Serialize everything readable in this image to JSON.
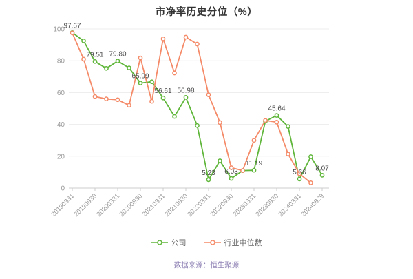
{
  "page": {
    "title": "市净率历史分位（%）",
    "source": "数据来源：恒生聚源"
  },
  "legend": {
    "items": [
      {
        "label": "公司",
        "color": "#5fb63a"
      },
      {
        "label": "行业中位数",
        "color": "#f48a68"
      }
    ]
  },
  "axis": {
    "y_tick_labels": [
      "0",
      "20",
      "40",
      "60",
      "80",
      "100"
    ],
    "x_tick_labels": [
      "20190331",
      "20190930",
      "20200331",
      "20200930",
      "20210331",
      "20210930",
      "20220331",
      "20220930",
      "20230331",
      "20230930",
      "20240331",
      "20240829"
    ]
  },
  "chart_data": {
    "type": "line",
    "title": "市净率历史分位（%）",
    "xlabel": "",
    "ylabel": "",
    "ylim": [
      0,
      100
    ],
    "yticks": [
      0,
      20,
      40,
      60,
      80,
      100
    ],
    "grid": true,
    "legend_position": "bottom",
    "x_tick_every": 2,
    "categories": [
      "20190331",
      "20190630",
      "20190930",
      "20191231",
      "20200331",
      "20200630",
      "20200930",
      "20201231",
      "20210331",
      "20210630",
      "20210930",
      "20211231",
      "20220331",
      "20220630",
      "20220930",
      "20221231",
      "20230331",
      "20230630",
      "20230930",
      "20231231",
      "20240331",
      "20240630",
      "20240829"
    ],
    "series": [
      {
        "name": "公司",
        "color": "#5fb63a",
        "values": [
          97.67,
          92.5,
          79.51,
          75.2,
          79.8,
          75.5,
          65.99,
          66.8,
          56.61,
          45.0,
          56.98,
          39.3,
          5.23,
          17.1,
          6.03,
          11.0,
          11.19,
          42.0,
          45.64,
          38.7,
          5.66,
          19.7,
          8.07
        ],
        "point_labels": [
          "97.67",
          "",
          "79.51",
          "",
          "79.80",
          "",
          "65.99",
          "",
          "56.61",
          "",
          "56.98",
          "",
          "5.23",
          "",
          "6.03",
          "",
          "11.19",
          "",
          "45.64",
          "",
          "5.66",
          "",
          "8.07"
        ]
      },
      {
        "name": "行业中位数",
        "color": "#f48a68",
        "values": [
          97.5,
          81.0,
          57.5,
          56.0,
          55.5,
          52.0,
          81.8,
          54.5,
          93.8,
          72.3,
          94.8,
          90.5,
          58.6,
          41.2,
          12.8,
          11.0,
          30.0,
          42.5,
          41.4,
          21.4,
          9.0,
          3.3,
          null
        ],
        "point_labels": []
      }
    ]
  }
}
